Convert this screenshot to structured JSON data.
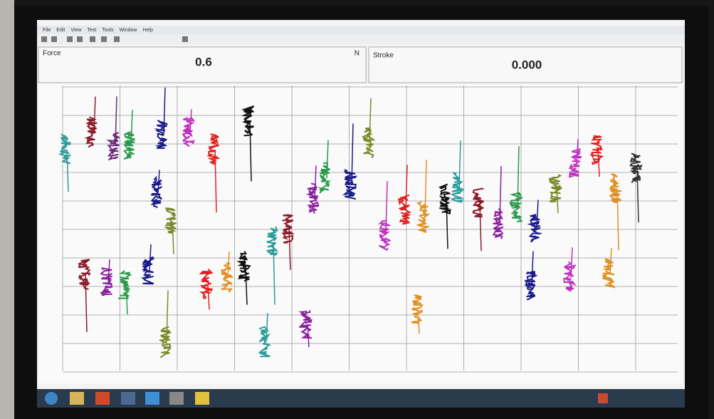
{
  "menu": [
    "File",
    "Edit",
    "View",
    "Test",
    "Tools",
    "Window",
    "Help"
  ],
  "readouts": {
    "force": {
      "label": "Force",
      "value": "0.6",
      "unit": "N"
    },
    "stroke": {
      "label": "Stroke",
      "value": "0.000"
    }
  }
}
